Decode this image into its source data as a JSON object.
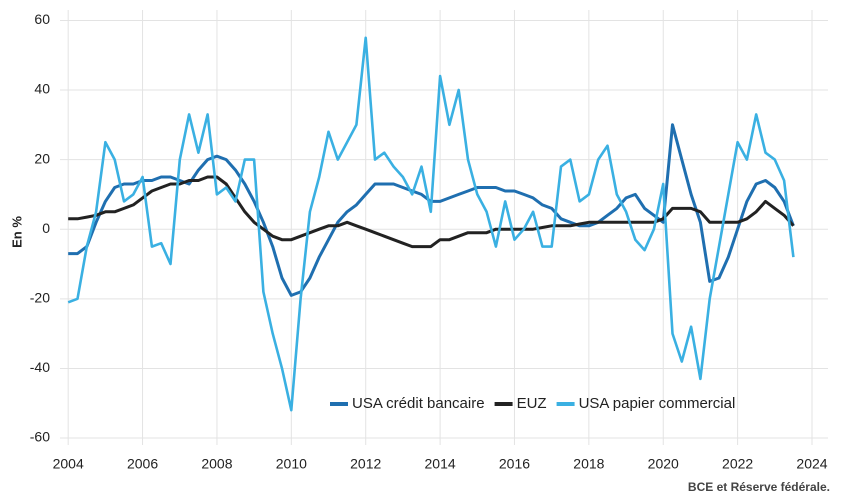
{
  "chart_data": {
    "type": "line",
    "y_label": "En %",
    "source": "BCE et Réserve fédérale.",
    "x": [
      2004,
      2004.25,
      2004.5,
      2004.75,
      2005,
      2005.25,
      2005.5,
      2005.75,
      2006,
      2006.25,
      2006.5,
      2006.75,
      2007,
      2007.25,
      2007.5,
      2007.75,
      2008,
      2008.25,
      2008.5,
      2008.75,
      2009,
      2009.25,
      2009.5,
      2009.75,
      2010,
      2010.25,
      2010.5,
      2010.75,
      2011,
      2011.25,
      2011.5,
      2011.75,
      2012,
      2012.25,
      2012.5,
      2012.75,
      2013,
      2013.25,
      2013.5,
      2013.75,
      2014,
      2014.25,
      2014.5,
      2014.75,
      2015,
      2015.25,
      2015.5,
      2015.75,
      2016,
      2016.25,
      2016.5,
      2016.75,
      2017,
      2017.25,
      2017.5,
      2017.75,
      2018,
      2018.25,
      2018.5,
      2018.75,
      2019,
      2019.25,
      2019.5,
      2019.75,
      2020,
      2020.25,
      2020.5,
      2020.75,
      2021,
      2021.25,
      2021.5,
      2021.75,
      2022,
      2022.25,
      2022.5,
      2022.75,
      2023,
      2023.25,
      2023.5
    ],
    "series": [
      {
        "name": "USA crédit bancaire",
        "color": "#1f6fb0",
        "values": [
          -7,
          -7,
          -5,
          2,
          8,
          12,
          13,
          13,
          14,
          14,
          15,
          15,
          14,
          13,
          17,
          20,
          21,
          20,
          17,
          13,
          8,
          2,
          -5,
          -14,
          -19,
          -18,
          -14,
          -8,
          -3,
          2,
          5,
          7,
          10,
          13,
          13,
          13,
          12,
          11,
          10,
          8,
          8,
          9,
          10,
          11,
          12,
          12,
          12,
          11,
          11,
          10,
          9,
          7,
          6,
          3,
          2,
          1,
          1,
          2,
          4,
          6,
          9,
          10,
          6,
          4,
          2,
          30,
          20,
          10,
          2,
          -15,
          -14,
          -8,
          0,
          8,
          13,
          14,
          12,
          8,
          1
        ]
      },
      {
        "name": "EUZ",
        "color": "#222222",
        "values": [
          3,
          3,
          3.5,
          4,
          5,
          5,
          6,
          7,
          9,
          11,
          12,
          13,
          13,
          14,
          14,
          15,
          15,
          13,
          9,
          5,
          2,
          0,
          -2,
          -3,
          -3,
          -2,
          -1,
          0,
          1,
          1,
          2,
          1,
          0,
          -1,
          -2,
          -3,
          -4,
          -5,
          -5,
          -5,
          -3,
          -3,
          -2,
          -1,
          -1,
          -1,
          0,
          0,
          0,
          0,
          0,
          0.5,
          1,
          1,
          1,
          1.5,
          2,
          2,
          2,
          2,
          2,
          2,
          2,
          2,
          3,
          6,
          6,
          6,
          5,
          2,
          2,
          2,
          2,
          3,
          5,
          8,
          6,
          4,
          1
        ]
      },
      {
        "name": "USA papier commercial",
        "color": "#3ab0e2",
        "values": [
          -21,
          -20,
          -5,
          5,
          25,
          20,
          8,
          10,
          15,
          -5,
          -4,
          -10,
          20,
          33,
          22,
          33,
          10,
          12,
          8,
          20,
          20,
          -18,
          -30,
          -40,
          -52,
          -20,
          5,
          15,
          28,
          20,
          25,
          30,
          55,
          20,
          22,
          18,
          15,
          10,
          18,
          5,
          44,
          30,
          40,
          20,
          10,
          5,
          -5,
          8,
          -3,
          0,
          5,
          -5,
          -5,
          18,
          20,
          8,
          10,
          20,
          24,
          10,
          5,
          -3,
          -6,
          0,
          13,
          -30,
          -38,
          -28,
          -43,
          -20,
          -5,
          10,
          25,
          20,
          33,
          22,
          20,
          14,
          -8
        ]
      }
    ],
    "xlim": [
      2003.78,
      2024.43
    ],
    "xticks": [
      2004,
      2006,
      2008,
      2010,
      2012,
      2014,
      2016,
      2018,
      2020,
      2022,
      2024
    ],
    "ylim": [
      -62,
      63
    ],
    "yticks": [
      -60,
      -40,
      -20,
      0,
      20,
      40,
      60
    ],
    "grid": true,
    "legend": "lower right"
  }
}
